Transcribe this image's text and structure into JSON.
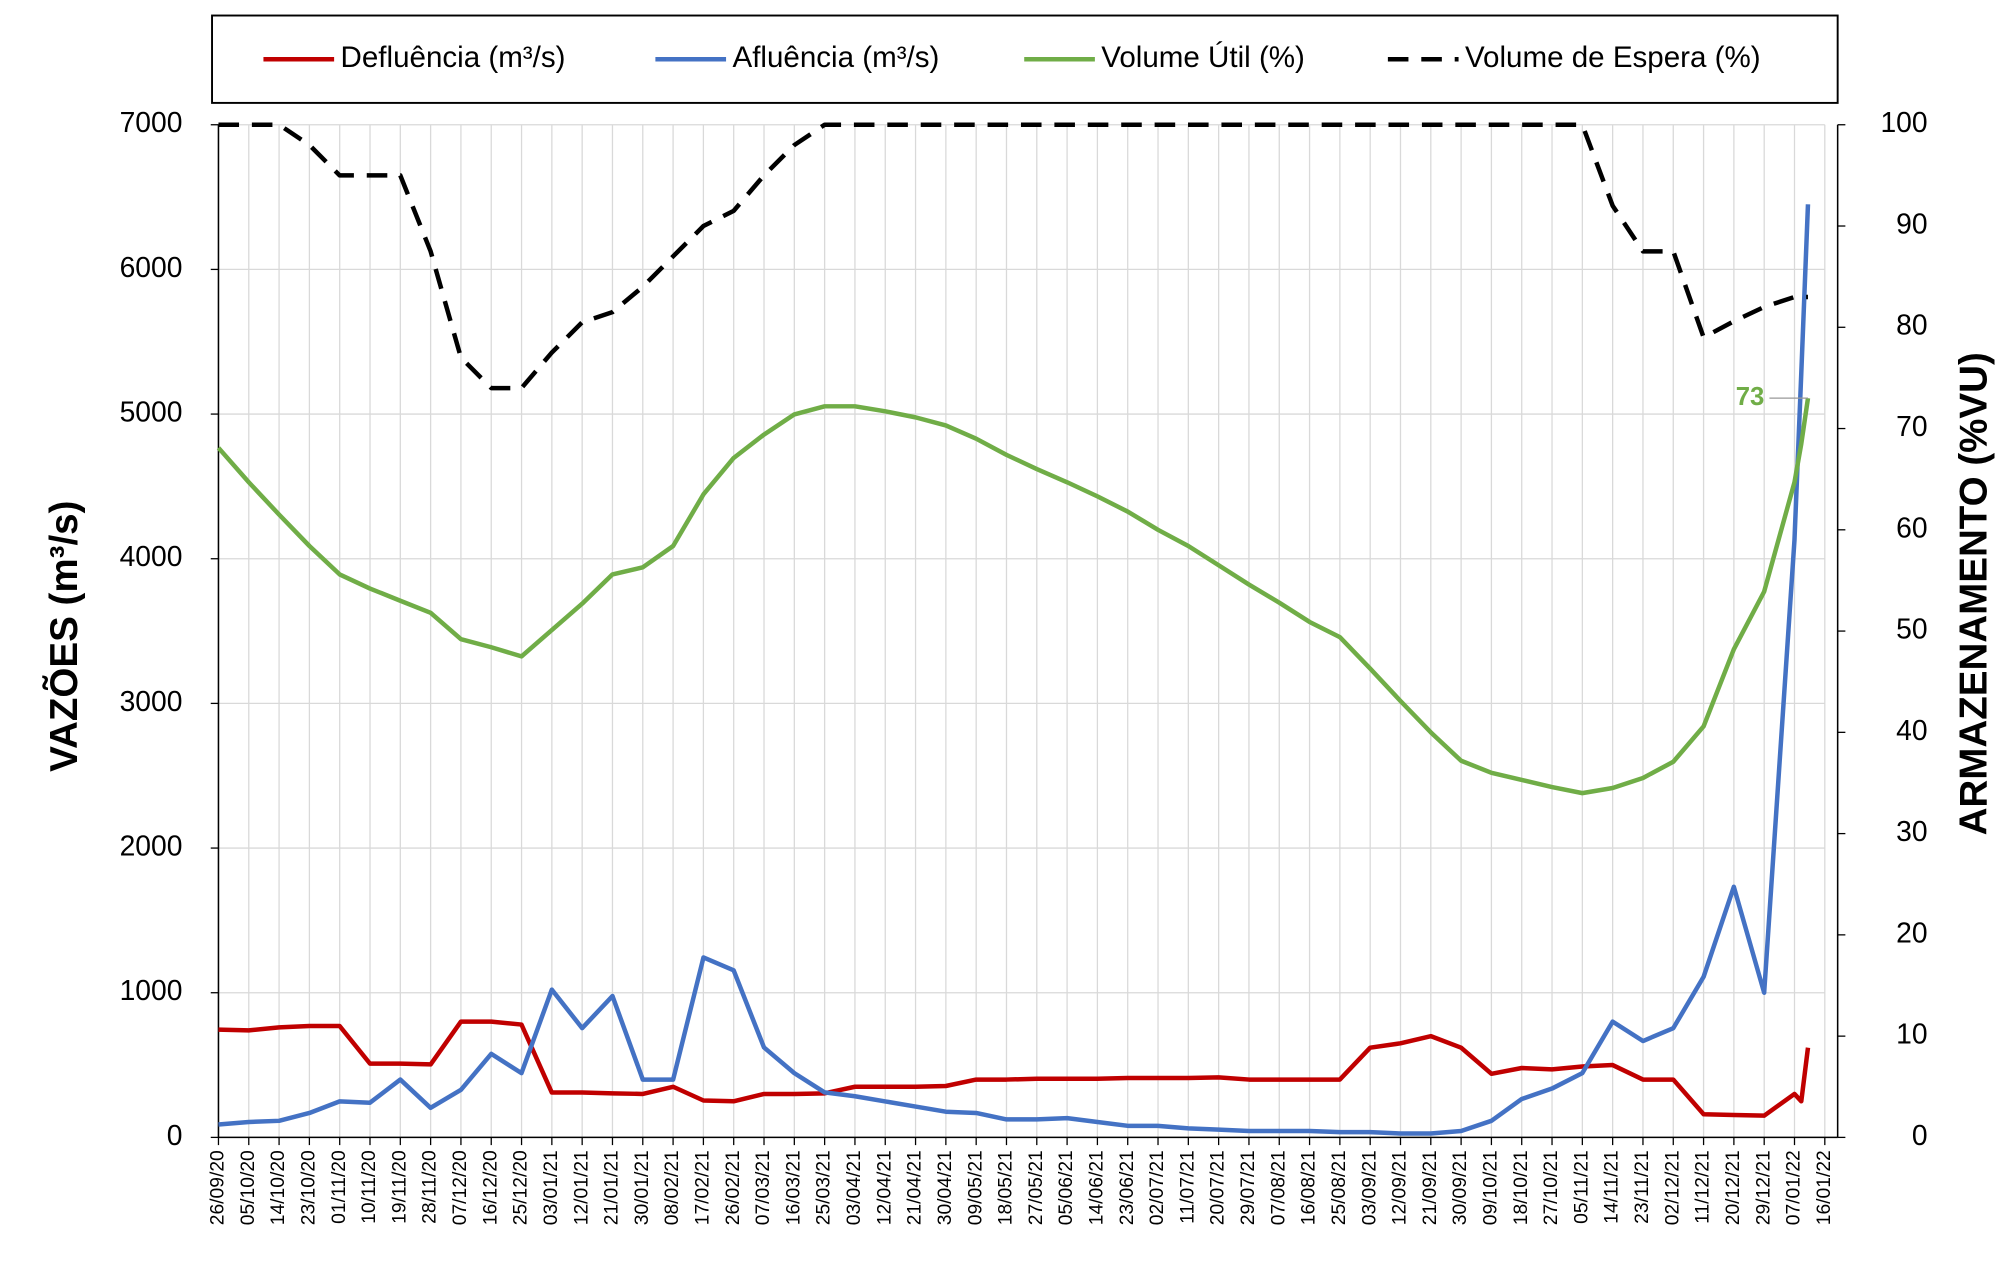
{
  "chart_data": {
    "type": "line",
    "x": [
      "26/09/20",
      "05/10/20",
      "14/10/20",
      "23/10/20",
      "01/11/20",
      "10/11/20",
      "19/11/20",
      "28/11/20",
      "07/12/20",
      "16/12/20",
      "25/12/20",
      "03/01/21",
      "12/01/21",
      "21/01/21",
      "30/01/21",
      "08/02/21",
      "17/02/21",
      "26/02/21",
      "07/03/21",
      "16/03/21",
      "25/03/21",
      "03/04/21",
      "12/04/21",
      "21/04/21",
      "30/04/21",
      "09/05/21",
      "18/05/21",
      "27/05/21",
      "05/06/21",
      "14/06/21",
      "23/06/21",
      "02/07/21",
      "11/07/21",
      "20/07/21",
      "29/07/21",
      "07/08/21",
      "16/08/21",
      "25/08/21",
      "03/09/21",
      "12/09/21",
      "21/09/21",
      "30/09/21",
      "09/10/21",
      "18/10/21",
      "27/10/21",
      "05/11/21",
      "14/11/21",
      "23/11/21",
      "02/12/21",
      "11/12/21",
      "20/12/21",
      "29/12/21",
      "07/01/22",
      "09/01/22",
      "11/01/22"
    ],
    "series": [
      {
        "name": "Defluência (m³/s)",
        "color": "#c00000",
        "axis": "y",
        "values": [
          745,
          740,
          760,
          770,
          770,
          510,
          510,
          505,
          800,
          800,
          780,
          310,
          310,
          305,
          300,
          350,
          255,
          250,
          300,
          300,
          305,
          350,
          350,
          350,
          355,
          400,
          400,
          405,
          405,
          405,
          410,
          410,
          410,
          415,
          400,
          400,
          400,
          400,
          620,
          650,
          700,
          620,
          440,
          480,
          470,
          490,
          500,
          400,
          400,
          160,
          155,
          150,
          300,
          250,
          620
        ]
      },
      {
        "name": "Afluência (m³/s)",
        "color": "#4472c4",
        "axis": "y",
        "values": [
          89,
          107,
          115,
          169,
          249,
          240,
          400,
          204,
          329,
          577,
          444,
          1022,
          755,
          977,
          400,
          400,
          1244,
          1155,
          622,
          444,
          311,
          284,
          249,
          213,
          178,
          169,
          124,
          124,
          133,
          107,
          80,
          80,
          62,
          53,
          44,
          44,
          44,
          36,
          36,
          27,
          27,
          44,
          115,
          266,
          338,
          444,
          800,
          666,
          755,
          1110,
          1732,
          1000,
          4130,
          5285,
          6450
        ]
      },
      {
        "name": "Volume Útil (%)",
        "color": "#70ad47",
        "axis": "y2",
        "label_last": true,
        "values": [
          68.1,
          64.7,
          61.5,
          58.4,
          55.6,
          54.2,
          53,
          51.8,
          49.2,
          48.4,
          47.5,
          50.1,
          52.7,
          55.6,
          56.3,
          58.4,
          63.5,
          67.1,
          69.4,
          71.4,
          72.2,
          72.2,
          71.7,
          71.1,
          70.3,
          69,
          67.4,
          66,
          64.7,
          63.3,
          61.8,
          60,
          58.4,
          56.5,
          54.6,
          52.8,
          50.9,
          49.4,
          46.3,
          43.1,
          40,
          37.2,
          36,
          35.3,
          34.6,
          34,
          34.5,
          35.5,
          37.1,
          40.6,
          48.2,
          53.9,
          64.7,
          68.5,
          73
        ]
      },
      {
        "name": "Volume de Espera (%)",
        "color": "#000000",
        "axis": "y2",
        "dashed": true,
        "values": [
          100,
          100,
          100,
          98,
          95,
          95,
          95,
          87.5,
          77,
          74,
          74,
          77.5,
          80.5,
          81.5,
          84,
          87,
          90,
          91.5,
          95,
          98,
          100,
          100,
          100,
          100,
          100,
          100,
          100,
          100,
          100,
          100,
          100,
          100,
          100,
          100,
          100,
          100,
          100,
          100,
          100,
          100,
          100,
          100,
          100,
          100,
          100,
          100,
          92,
          87.5,
          87.5,
          79,
          80.6,
          82,
          83,
          83,
          83
        ]
      }
    ],
    "xlim": [
      "26/09/20",
      "16/01/22"
    ],
    "xticks": [
      "26/09/20",
      "05/10/20",
      "14/10/20",
      "23/10/20",
      "01/11/20",
      "10/11/20",
      "19/11/20",
      "28/11/20",
      "07/12/20",
      "16/12/20",
      "25/12/20",
      "03/01/21",
      "12/01/21",
      "21/01/21",
      "30/01/21",
      "08/02/21",
      "17/02/21",
      "26/02/21",
      "07/03/21",
      "16/03/21",
      "25/03/21",
      "03/04/21",
      "12/04/21",
      "21/04/21",
      "30/04/21",
      "09/05/21",
      "18/05/21",
      "27/05/21",
      "05/06/21",
      "14/06/21",
      "23/06/21",
      "02/07/21",
      "11/07/21",
      "20/07/21",
      "29/07/21",
      "07/08/21",
      "16/08/21",
      "25/08/21",
      "03/09/21",
      "12/09/21",
      "21/09/21",
      "30/09/21",
      "09/10/21",
      "18/10/21",
      "27/10/21",
      "05/11/21",
      "14/11/21",
      "23/11/21",
      "02/12/21",
      "11/12/21",
      "20/12/21",
      "29/12/21",
      "07/01/22",
      "16/01/22"
    ],
    "ylim": [
      0,
      7000
    ],
    "yticks": [
      0,
      1000,
      2000,
      3000,
      4000,
      5000,
      6000,
      7000
    ],
    "y2lim": [
      0,
      100
    ],
    "y2ticks": [
      0,
      10,
      20,
      30,
      40,
      50,
      60,
      70,
      80,
      90,
      100
    ],
    "ylabel": "VAZÕES (m³/s)",
    "y2label": "ARMAZENAMENTO (%VU)",
    "grid": true,
    "legend": "top"
  }
}
